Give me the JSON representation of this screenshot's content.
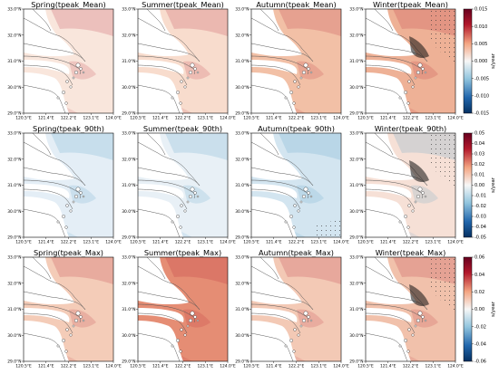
{
  "grid": {
    "rows": [
      {
        "colorbar": {
          "ticks": [
            "0.015",
            "0.010",
            "0.005",
            "0.000",
            "-0.005",
            "-0.010",
            "-0.015"
          ],
          "unit": "s/year"
        },
        "panels": [
          {
            "title": "Spring(tpeak_Mean)",
            "fill": "#f9e6dc"
          },
          {
            "title": "Summer(tpeak_Mean)",
            "fill": "#f8dccd"
          },
          {
            "title": "Autumn(tpeak_Mean)",
            "fill": "#f2c0a6"
          },
          {
            "title": "Winter(tpeak_Mean)",
            "fill": "#eeb196"
          }
        ]
      },
      {
        "colorbar": {
          "ticks": [
            "0.05",
            "0.04",
            "0.03",
            "0.02",
            "0.01",
            "0.00",
            "-0.01",
            "-0.02",
            "-0.03",
            "-0.04",
            "-0.05"
          ],
          "unit": "s/year"
        },
        "panels": [
          {
            "title": "Spring(tpeak_90th)",
            "fill": "#e4eef6"
          },
          {
            "title": "Summer(tpeak_90th)",
            "fill": "#e8f0f6"
          },
          {
            "title": "Autumn(tpeak_90th)",
            "fill": "#d3e5f0"
          },
          {
            "title": "Winter(tpeak_90th)",
            "fill": "#f6e0d6"
          }
        ]
      },
      {
        "colorbar": {
          "ticks": [
            "0.06",
            "0.04",
            "0.02",
            "0.00",
            "-0.02",
            "-0.04",
            "-0.06"
          ],
          "unit": "s/year"
        },
        "panels": [
          {
            "title": "Spring(tpeak_Max)",
            "fill": "#f4ccb8"
          },
          {
            "title": "Summer(tpeak_Max)",
            "fill": "#e58d74"
          },
          {
            "title": "Autumn(tpeak_Max)",
            "fill": "#f3c9b5"
          },
          {
            "title": "Winter(tpeak_Max)",
            "fill": "#f1c1ab"
          }
        ]
      }
    ]
  },
  "axes": {
    "lat_ticks": [
      "33.0°N",
      "32.0°N",
      "31.0°N",
      "30.0°N",
      "29.0°N"
    ],
    "lon_ticks": [
      "120.5°E",
      "121.4°E",
      "122.2°E",
      "123.1°E",
      "124.0°E"
    ]
  },
  "colors": {
    "land": "#ffffff",
    "coastline": "#555555",
    "significance_stipple": "#333333",
    "cmap_high": "#67001f",
    "cmap_zero": "#f7f7f7",
    "cmap_low": "#053061"
  }
}
